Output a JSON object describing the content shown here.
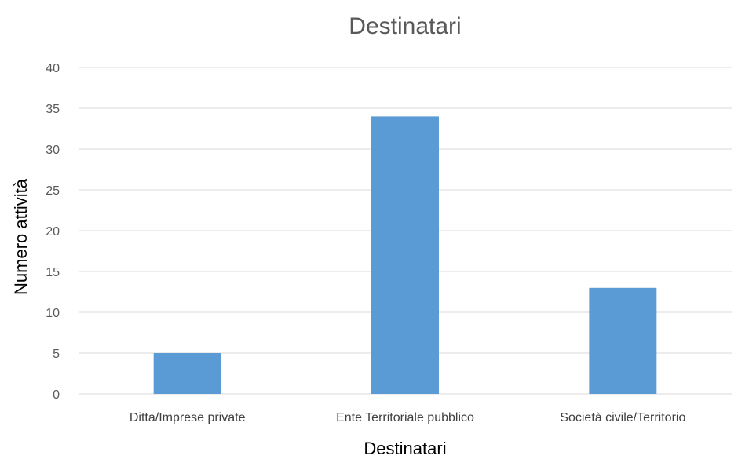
{
  "chart_data": {
    "type": "bar",
    "title": "Destinatari",
    "xlabel": "Destinatari",
    "ylabel": "Numero attività",
    "categories": [
      "Ditta/Imprese private",
      "Ente Territoriale pubblico",
      "Società civile/Territorio"
    ],
    "values": [
      5,
      34,
      13
    ],
    "ylim": [
      0,
      40
    ],
    "yticks": [
      "0",
      "5",
      "10",
      "15",
      "20",
      "25",
      "30",
      "35",
      "40"
    ],
    "grid": true,
    "legend": "none",
    "bar_color": "#5b9bd5"
  }
}
